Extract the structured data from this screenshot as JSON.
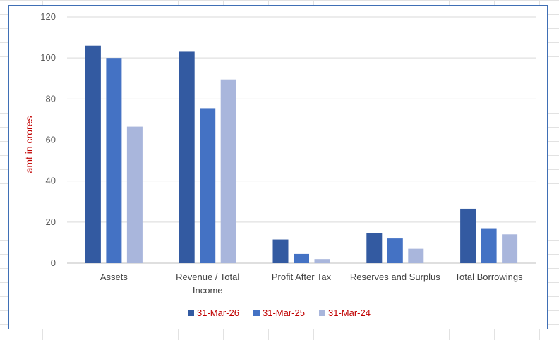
{
  "chart_data": {
    "type": "bar",
    "categories": [
      "Assets",
      "Revenue / Total Income",
      "Profit After Tax",
      "Reserves and Surplus",
      "Total Borrowings"
    ],
    "category_lines": [
      [
        "Assets"
      ],
      [
        "Revenue / Total",
        "Income"
      ],
      [
        "Profit After Tax"
      ],
      [
        "Reserves and Surplus"
      ],
      [
        "Total Borrowings"
      ]
    ],
    "series": [
      {
        "name": "31-Mar-26",
        "values": [
          106,
          103,
          11.5,
          14.5,
          26.5
        ],
        "color": "#335aa1"
      },
      {
        "name": "31-Mar-25",
        "values": [
          100,
          75.5,
          4.5,
          12,
          17
        ],
        "color": "#4472c4"
      },
      {
        "name": "31-Mar-24",
        "values": [
          66.5,
          89.5,
          2,
          7,
          14
        ],
        "color": "#a9b6dc"
      }
    ],
    "title": "",
    "xlabel": "",
    "ylabel": "amt in crores",
    "ylabel_color": "#c00000",
    "ylim": [
      0,
      120
    ],
    "yticks": [
      0,
      20,
      40,
      60,
      80,
      100,
      120
    ],
    "grid": true,
    "legend": "bottom"
  }
}
